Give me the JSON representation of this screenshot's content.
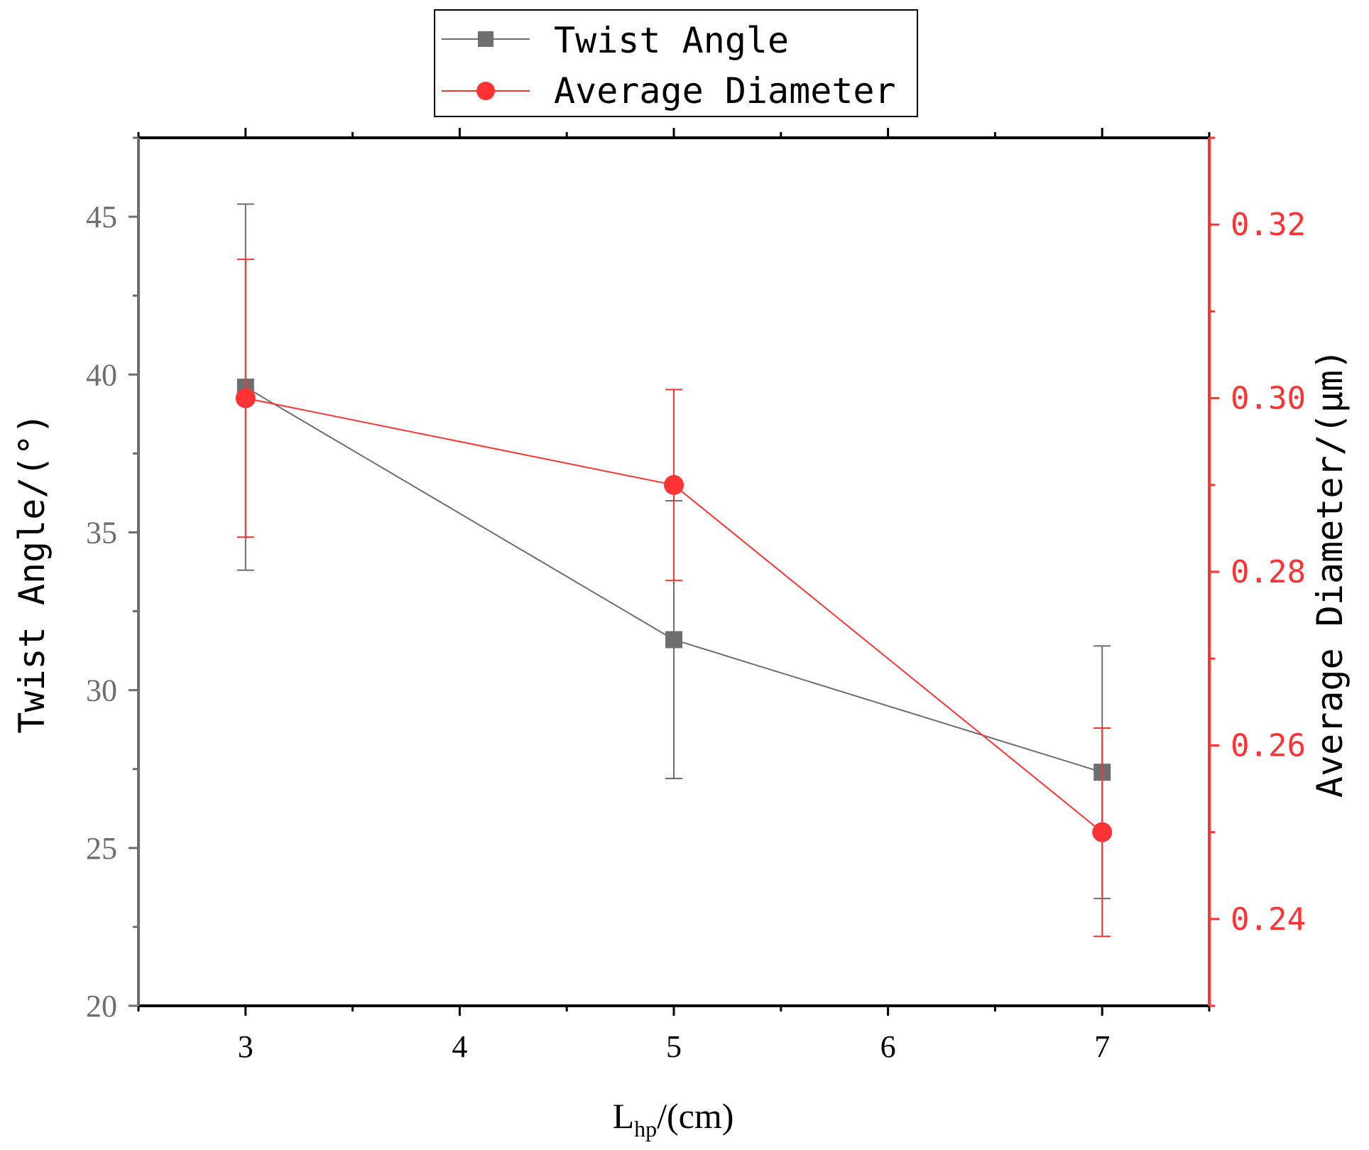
{
  "chart_data": {
    "type": "line",
    "x": [
      3,
      5,
      7
    ],
    "xlabel": {
      "main": "L",
      "sub": "hp",
      "rest": "/(cm)"
    },
    "xlim": [
      2.5,
      7.5
    ],
    "xticks": [
      3,
      4,
      5,
      6,
      7
    ],
    "grid": false,
    "legend_position": "top-center",
    "series": [
      {
        "name": "Twist Angle",
        "axis": "left",
        "values": [
          39.6,
          31.6,
          27.4
        ],
        "error_low": [
          33.8,
          27.2,
          23.4
        ],
        "error_high": [
          45.4,
          36.0,
          31.4
        ],
        "color": "#6e6e6e",
        "marker": "square"
      },
      {
        "name": "Average Diameter",
        "axis": "right",
        "values": [
          0.3,
          0.29,
          0.25
        ],
        "error_low": [
          0.284,
          0.279,
          0.238
        ],
        "error_high": [
          0.316,
          0.301,
          0.262
        ],
        "color": "#ff3333",
        "marker": "circle"
      }
    ],
    "y_left": {
      "label": "Twist Angle/(°)",
      "ylim": [
        20,
        47.5
      ],
      "ticks": [
        "20",
        "25",
        "30",
        "35",
        "40",
        "45"
      ],
      "tick_values": [
        20,
        25,
        30,
        35,
        40,
        45
      ],
      "color": "#6e6e6e"
    },
    "y_right": {
      "label": "Average Diameter/(μm)",
      "ylim": [
        0.23,
        0.33
      ],
      "ticks": [
        "0.24",
        "0.26",
        "0.28",
        "0.30",
        "0.32"
      ],
      "tick_values": [
        0.24,
        0.26,
        0.28,
        0.3,
        0.32
      ],
      "color": "#ff3333"
    }
  }
}
